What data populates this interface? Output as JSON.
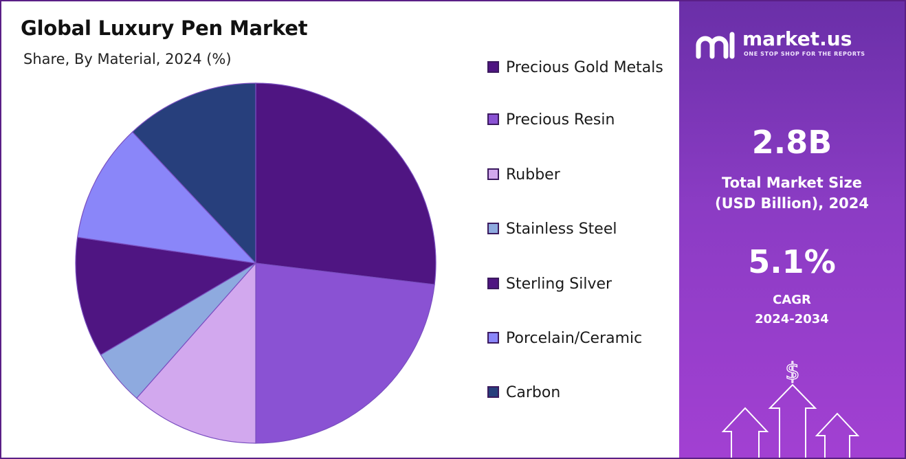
{
  "header": {
    "title": "Global Luxury Pen Market",
    "subtitle": "Share, By Material, 2024 (%)"
  },
  "chart_data": {
    "type": "pie",
    "title": "Global Luxury Pen Market",
    "subtitle": "Share, By Material, 2024 (%)",
    "legend_position": "right",
    "categories": [
      "Precious Gold Metals",
      "Precious Resin",
      "Rubber",
      "Stainless Steel",
      "Sterling Silver",
      "Porcelain/Ceramic",
      "Carbon"
    ],
    "values": [
      26.9,
      23.1,
      11.5,
      5.0,
      10.8,
      10.7,
      12.0
    ],
    "colors": [
      "#4f1582",
      "#8a52d3",
      "#d2a8ee",
      "#8eaadf",
      "#4f1582",
      "#8a86f9",
      "#273f7c"
    ]
  },
  "legend": {
    "items": [
      {
        "label": "Precious Gold Metals",
        "color": "#4f1582"
      },
      {
        "label": "Precious Resin",
        "color": "#8a52d3"
      },
      {
        "label": "Rubber",
        "color": "#d2a8ee"
      },
      {
        "label": "Stainless Steel",
        "color": "#8eaadf"
      },
      {
        "label": "Sterling Silver",
        "color": "#4f1582"
      },
      {
        "label": "Porcelain/Ceramic",
        "color": "#8a86f9"
      },
      {
        "label": "Carbon",
        "color": "#273f7c"
      }
    ]
  },
  "sidebar": {
    "brand_name": "market.us",
    "brand_tagline": "ONE STOP SHOP FOR THE REPORTS",
    "market_size_value": "2.8B",
    "market_size_label_1": "Total Market Size",
    "market_size_label_2": "(USD Billion), 2024",
    "cagr_value": "5.1%",
    "cagr_label_1": "CAGR",
    "cagr_label_2": "2024-2034",
    "currency_symbol": "$",
    "icons": [
      "market-us-logo-icon",
      "growth-arrows-icon"
    ]
  }
}
